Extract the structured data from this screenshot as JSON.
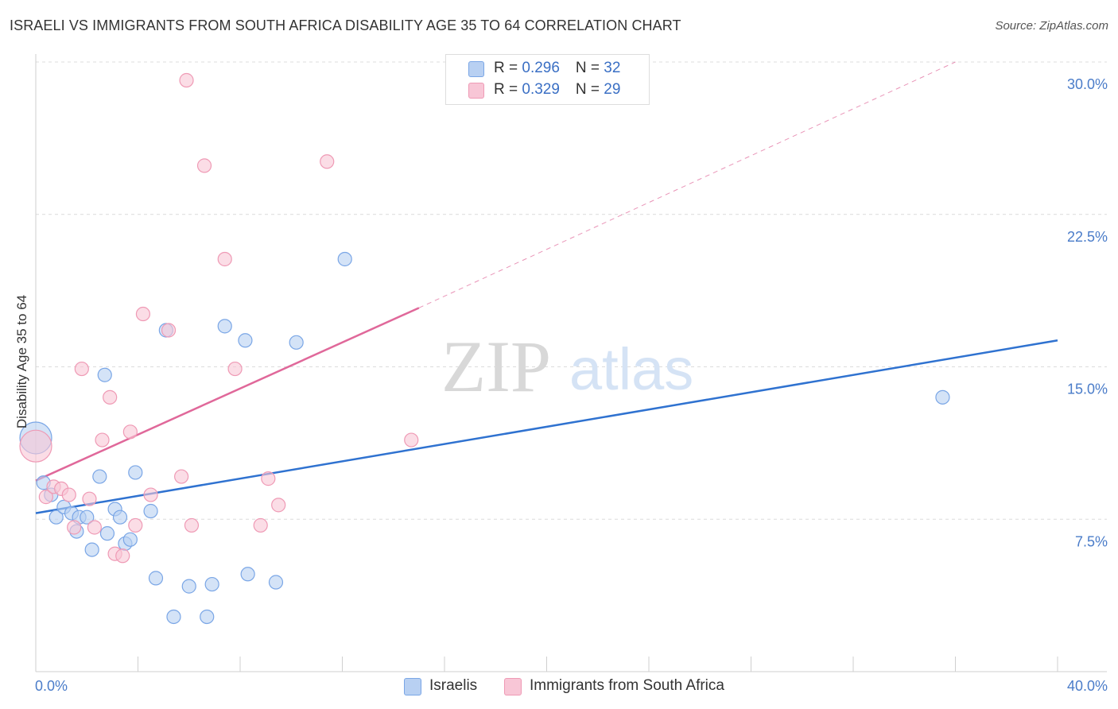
{
  "title": "ISRAELI VS IMMIGRANTS FROM SOUTH AFRICA DISABILITY AGE 35 TO 64 CORRELATION CHART",
  "source": "Source: ZipAtlas.com",
  "watermark": {
    "zip": "ZIP",
    "atlas": "atlas"
  },
  "legend": {
    "israelis": {
      "r_label": "R = ",
      "r_value": "0.296",
      "n_label": "N = ",
      "n_value": "32"
    },
    "immigrants": {
      "r_label": "R = ",
      "r_value": "0.329",
      "n_label": "N = ",
      "n_value": "29"
    }
  },
  "chart_data": {
    "type": "scatter",
    "xlabel": "",
    "ylabel": "Disability Age 35 to 64",
    "xlim": [
      0,
      40
    ],
    "ylim": [
      0,
      30
    ],
    "x_tick_labels": [
      "0.0%",
      "40.0%"
    ],
    "y_ticks": [
      7.5,
      15.0,
      22.5,
      30.0
    ],
    "y_tick_labels": [
      "7.5%",
      "15.0%",
      "22.5%",
      "30.0%"
    ],
    "grid": true,
    "legend_position": "top-center",
    "series": [
      {
        "name": "Israelis",
        "color": "#7aa6e6",
        "fill": "#b8d0f2",
        "line_color": "#2f72d0",
        "trend": {
          "x": [
            0,
            40
          ],
          "y": [
            7.8,
            16.3
          ]
        },
        "points": [
          {
            "x": 0.0,
            "y": 11.5,
            "big": true
          },
          {
            "x": 0.3,
            "y": 9.3
          },
          {
            "x": 0.6,
            "y": 8.7
          },
          {
            "x": 0.8,
            "y": 7.6
          },
          {
            "x": 1.1,
            "y": 8.1
          },
          {
            "x": 1.4,
            "y": 7.8
          },
          {
            "x": 1.6,
            "y": 6.9
          },
          {
            "x": 1.7,
            "y": 7.6
          },
          {
            "x": 2.0,
            "y": 7.6
          },
          {
            "x": 2.2,
            "y": 6.0
          },
          {
            "x": 2.5,
            "y": 9.6
          },
          {
            "x": 2.7,
            "y": 14.6
          },
          {
            "x": 2.8,
            "y": 6.8
          },
          {
            "x": 3.1,
            "y": 8.0
          },
          {
            "x": 3.3,
            "y": 7.6
          },
          {
            "x": 3.5,
            "y": 6.3
          },
          {
            "x": 3.7,
            "y": 6.5
          },
          {
            "x": 3.9,
            "y": 9.8
          },
          {
            "x": 4.5,
            "y": 7.9
          },
          {
            "x": 4.7,
            "y": 4.6
          },
          {
            "x": 5.1,
            "y": 16.8
          },
          {
            "x": 5.4,
            "y": 2.7
          },
          {
            "x": 6.0,
            "y": 4.2
          },
          {
            "x": 6.7,
            "y": 2.7
          },
          {
            "x": 6.9,
            "y": 4.3
          },
          {
            "x": 7.4,
            "y": 17.0
          },
          {
            "x": 8.2,
            "y": 16.3
          },
          {
            "x": 8.3,
            "y": 4.8
          },
          {
            "x": 9.4,
            "y": 4.4
          },
          {
            "x": 10.2,
            "y": 16.2
          },
          {
            "x": 12.1,
            "y": 20.3
          },
          {
            "x": 35.5,
            "y": 13.5
          }
        ]
      },
      {
        "name": "Immigrants from South Africa",
        "color": "#ef9ab5",
        "fill": "#f8c6d6",
        "line_color": "#e0689a",
        "trend": {
          "x": [
            0,
            15
          ],
          "y": [
            9.4,
            17.9
          ]
        },
        "trend_ext": {
          "x": [
            15,
            36
          ],
          "y": [
            17.9,
            30.0
          ]
        },
        "points": [
          {
            "x": 0.0,
            "y": 11.1,
            "big": true
          },
          {
            "x": 0.4,
            "y": 8.6
          },
          {
            "x": 0.7,
            "y": 9.1
          },
          {
            "x": 1.0,
            "y": 9.0
          },
          {
            "x": 1.3,
            "y": 8.7
          },
          {
            "x": 1.5,
            "y": 7.1
          },
          {
            "x": 1.8,
            "y": 14.9
          },
          {
            "x": 2.1,
            "y": 8.5
          },
          {
            "x": 2.3,
            "y": 7.1
          },
          {
            "x": 2.6,
            "y": 11.4
          },
          {
            "x": 2.9,
            "y": 13.5
          },
          {
            "x": 3.1,
            "y": 5.8
          },
          {
            "x": 3.4,
            "y": 5.7
          },
          {
            "x": 3.7,
            "y": 11.8
          },
          {
            "x": 3.9,
            "y": 7.2
          },
          {
            "x": 4.2,
            "y": 17.6
          },
          {
            "x": 4.5,
            "y": 8.7
          },
          {
            "x": 5.2,
            "y": 16.8
          },
          {
            "x": 5.7,
            "y": 9.6
          },
          {
            "x": 5.9,
            "y": 29.1
          },
          {
            "x": 6.1,
            "y": 7.2
          },
          {
            "x": 6.6,
            "y": 24.9
          },
          {
            "x": 7.4,
            "y": 20.3
          },
          {
            "x": 7.8,
            "y": 14.9
          },
          {
            "x": 8.8,
            "y": 7.2
          },
          {
            "x": 9.1,
            "y": 9.5
          },
          {
            "x": 9.5,
            "y": 8.2
          },
          {
            "x": 11.4,
            "y": 25.1
          },
          {
            "x": 14.7,
            "y": 11.4
          }
        ]
      }
    ]
  },
  "bottom_legend": {
    "israelis": "Israelis",
    "immigrants": "Immigrants from South Africa"
  }
}
